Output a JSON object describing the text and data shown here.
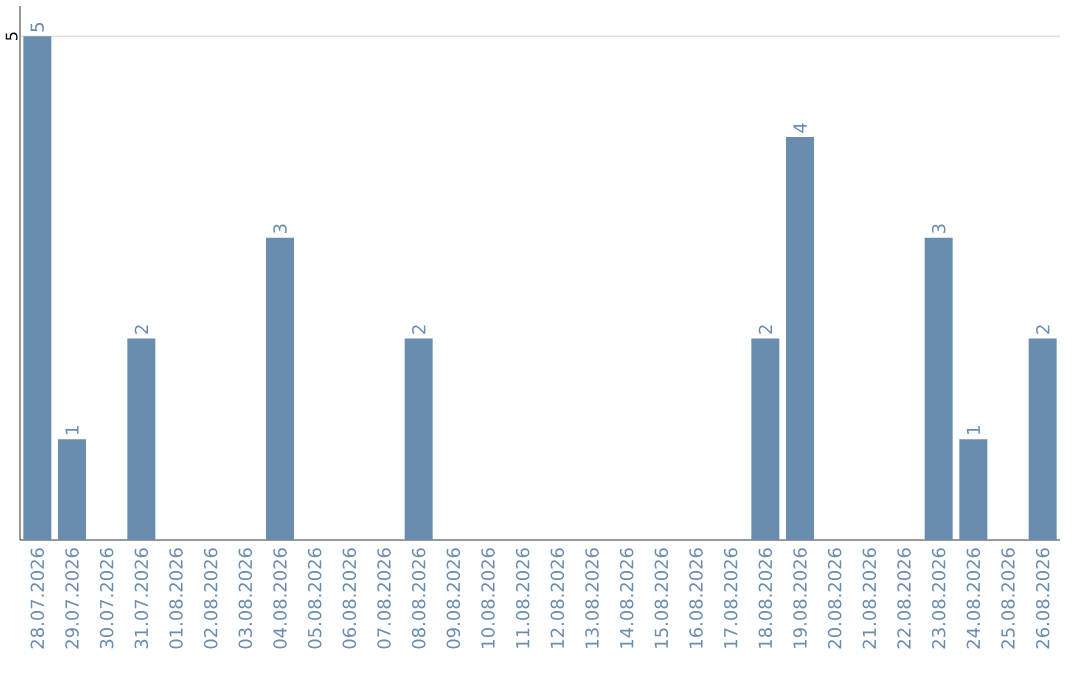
{
  "chart_data": {
    "type": "bar",
    "categories": [
      "28.07.2026",
      "29.07.2026",
      "30.07.2026",
      "31.07.2026",
      "01.08.2026",
      "02.08.2026",
      "03.08.2026",
      "04.08.2026",
      "05.08.2026",
      "06.08.2026",
      "07.08.2026",
      "08.08.2026",
      "09.08.2026",
      "10.08.2026",
      "11.08.2026",
      "12.08.2026",
      "13.08.2026",
      "14.08.2026",
      "15.08.2026",
      "16.08.2026",
      "17.08.2026",
      "18.08.2026",
      "19.08.2026",
      "20.08.2026",
      "21.08.2026",
      "22.08.2026",
      "23.08.2026",
      "24.08.2026",
      "25.08.2026",
      "26.08.2026"
    ],
    "values": [
      5,
      1,
      0,
      2,
      0,
      0,
      0,
      3,
      0,
      0,
      0,
      2,
      0,
      0,
      0,
      0,
      0,
      0,
      0,
      0,
      0,
      2,
      4,
      0,
      0,
      0,
      3,
      1,
      0,
      2
    ],
    "value_labels": [
      "5",
      "1",
      null,
      "2",
      null,
      null,
      null,
      "3",
      null,
      null,
      null,
      "2",
      null,
      null,
      null,
      null,
      null,
      null,
      null,
      null,
      null,
      "2",
      "4",
      null,
      null,
      null,
      "3",
      "1",
      null,
      "2"
    ],
    "color": "#6a8caf",
    "ylim": [
      0,
      5.3
    ],
    "yticks": [
      5
    ],
    "grid": "y"
  }
}
